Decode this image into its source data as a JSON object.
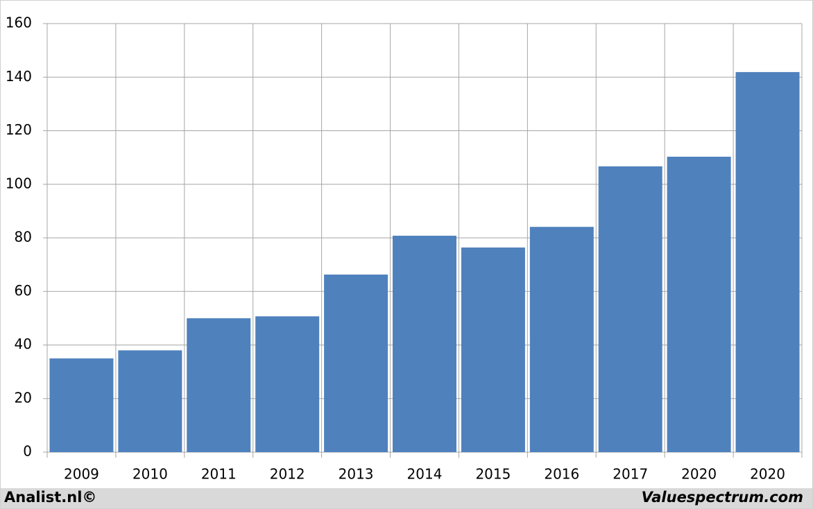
{
  "chart_data": {
    "type": "bar",
    "categories": [
      "2009",
      "2010",
      "2011",
      "2012",
      "2013",
      "2014",
      "2015",
      "2016",
      "2017",
      "2020",
      "2020"
    ],
    "values": [
      35,
      38,
      50,
      50.7,
      66.3,
      80.8,
      76.4,
      84.1,
      106.7,
      110.3,
      141.9
    ],
    "color": "#4f81bd",
    "ylim": [
      0,
      160
    ],
    "yticks": [
      0,
      20,
      40,
      60,
      80,
      100,
      120,
      140,
      160
    ],
    "grid": true
  },
  "footer": {
    "left": "Analist.nl©",
    "right": "Valuespectrum.com"
  }
}
